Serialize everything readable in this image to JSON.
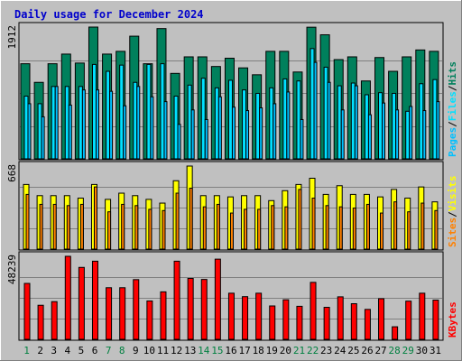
{
  "title": "Daily usage for December 2024",
  "colors": {
    "background": "#C0C0C0",
    "hits": "#00805C",
    "files": "#00E0FF",
    "pages": "#00C0FF",
    "visits": "#FFFF00",
    "sites": "#FF8000",
    "kbytes": "#FF0000",
    "title": "#0000CC",
    "weekday": "#008040",
    "weekend": "#00805C"
  },
  "chart_data": [
    {
      "type": "bar",
      "panel": "hits-files-pages",
      "y_max_label": "1912",
      "categories": [
        "1",
        "2",
        "3",
        "4",
        "5",
        "6",
        "7",
        "8",
        "9",
        "10",
        "11",
        "12",
        "13",
        "14",
        "15",
        "16",
        "17",
        "18",
        "19",
        "20",
        "21",
        "22",
        "23",
        "24",
        "25",
        "26",
        "27",
        "28",
        "29",
        "30",
        "31"
      ],
      "weekend_days": [
        "1",
        "7",
        "8",
        "14",
        "15",
        "21",
        "22",
        "28",
        "29"
      ],
      "series": [
        {
          "name": "Hits",
          "values": [
            1380,
            1110,
            1380,
            1520,
            1390,
            1912,
            1520,
            1560,
            1780,
            1380,
            1890,
            1240,
            1480,
            1480,
            1340,
            1460,
            1320,
            1220,
            1560,
            1560,
            1260,
            1910,
            1800,
            1440,
            1480,
            1130,
            1470,
            1270,
            1480,
            1580,
            1560
          ]
        },
        {
          "name": "Files",
          "values": [
            910,
            800,
            1050,
            1050,
            1050,
            1370,
            1270,
            1360,
            1110,
            1370,
            1380,
            910,
            1070,
            1170,
            1030,
            1140,
            1000,
            950,
            1030,
            1160,
            1130,
            1600,
            1330,
            1060,
            1100,
            930,
            960,
            950,
            690,
            1090,
            1150
          ]
        },
        {
          "name": "Pages",
          "values": [
            800,
            610,
            1050,
            780,
            1000,
            1000,
            980,
            770,
            1050,
            900,
            830,
            500,
            710,
            570,
            900,
            750,
            700,
            740,
            800,
            970,
            570,
            1400,
            1110,
            710,
            1060,
            640,
            810,
            710,
            760,
            700,
            830
          ]
        }
      ],
      "right_label": [
        "Pages",
        "Files",
        "Hits"
      ]
    },
    {
      "type": "bar",
      "panel": "visits-sites",
      "y_max_label": "668",
      "categories": [
        "1",
        "2",
        "3",
        "4",
        "5",
        "6",
        "7",
        "8",
        "9",
        "10",
        "11",
        "12",
        "13",
        "14",
        "15",
        "16",
        "17",
        "18",
        "19",
        "20",
        "21",
        "22",
        "23",
        "24",
        "25",
        "26",
        "27",
        "28",
        "29",
        "30",
        "31"
      ],
      "series": [
        {
          "name": "Visits",
          "values": [
            520,
            430,
            430,
            430,
            410,
            520,
            400,
            450,
            430,
            400,
            370,
            550,
            668,
            430,
            430,
            420,
            430,
            430,
            390,
            470,
            520,
            570,
            440,
            510,
            440,
            440,
            420,
            480,
            410,
            500,
            380
          ]
        },
        {
          "name": "Sites",
          "values": [
            440,
            360,
            360,
            350,
            360,
            500,
            300,
            360,
            350,
            320,
            310,
            450,
            490,
            340,
            360,
            290,
            320,
            320,
            350,
            340,
            480,
            410,
            350,
            340,
            330,
            360,
            290,
            380,
            300,
            370,
            310
          ]
        }
      ],
      "right_label": [
        "Sites",
        "Visits"
      ]
    },
    {
      "type": "bar",
      "panel": "kbytes",
      "y_max_label": "48239",
      "categories": [
        "1",
        "2",
        "3",
        "4",
        "5",
        "6",
        "7",
        "8",
        "9",
        "10",
        "11",
        "12",
        "13",
        "14",
        "15",
        "16",
        "17",
        "18",
        "19",
        "20",
        "21",
        "22",
        "23",
        "24",
        "25",
        "26",
        "27",
        "28",
        "29",
        "30",
        "31"
      ],
      "series": [
        {
          "name": "KBytes",
          "values": [
            32500,
            19800,
            21900,
            48239,
            41800,
            45400,
            30000,
            30000,
            34700,
            22300,
            27600,
            45400,
            35400,
            34800,
            46600,
            26800,
            24800,
            26800,
            19400,
            23000,
            19200,
            33100,
            18600,
            24700,
            20700,
            17400,
            23600,
            7300,
            22200,
            26800,
            22800
          ]
        }
      ],
      "right_label": [
        "KBytes"
      ]
    }
  ]
}
